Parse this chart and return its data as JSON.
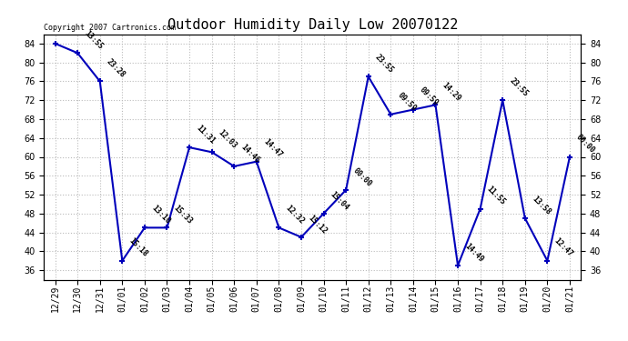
{
  "title": "Outdoor Humidity Daily Low 20070122",
  "copyright": "Copyright 2007 Cartronics.com",
  "x_labels": [
    "12/29",
    "12/30",
    "12/31",
    "01/01",
    "01/02",
    "01/03",
    "01/04",
    "01/05",
    "01/06",
    "01/07",
    "01/08",
    "01/09",
    "01/10",
    "01/11",
    "01/12",
    "01/13",
    "01/14",
    "01/15",
    "01/16",
    "01/17",
    "01/18",
    "01/19",
    "01/20",
    "01/21"
  ],
  "y_values": [
    84,
    82,
    76,
    38,
    45,
    45,
    62,
    61,
    58,
    59,
    45,
    43,
    48,
    53,
    77,
    69,
    70,
    71,
    37,
    49,
    72,
    47,
    38,
    60
  ],
  "annotations": [
    "",
    "13:55",
    "23:28",
    "15:18",
    "13:10",
    "15:33",
    "11:31",
    "12:03",
    "14:46",
    "14:47",
    "12:32",
    "15:12",
    "15:04",
    "00:00",
    "23:55",
    "09:59",
    "09:59",
    "14:29",
    "14:49",
    "11:55",
    "23:55",
    "13:58",
    "12:47",
    "00:00"
  ],
  "ylim": [
    34,
    86
  ],
  "yticks": [
    36,
    40,
    44,
    48,
    52,
    56,
    60,
    64,
    68,
    72,
    76,
    80,
    84
  ],
  "line_color": "#0000bb",
  "marker_color": "#0000bb",
  "bg_color": "#ffffff",
  "grid_color": "#bbbbbb",
  "title_fontsize": 11,
  "annotation_fontsize": 6,
  "label_fontsize": 7,
  "copyright_fontsize": 6
}
